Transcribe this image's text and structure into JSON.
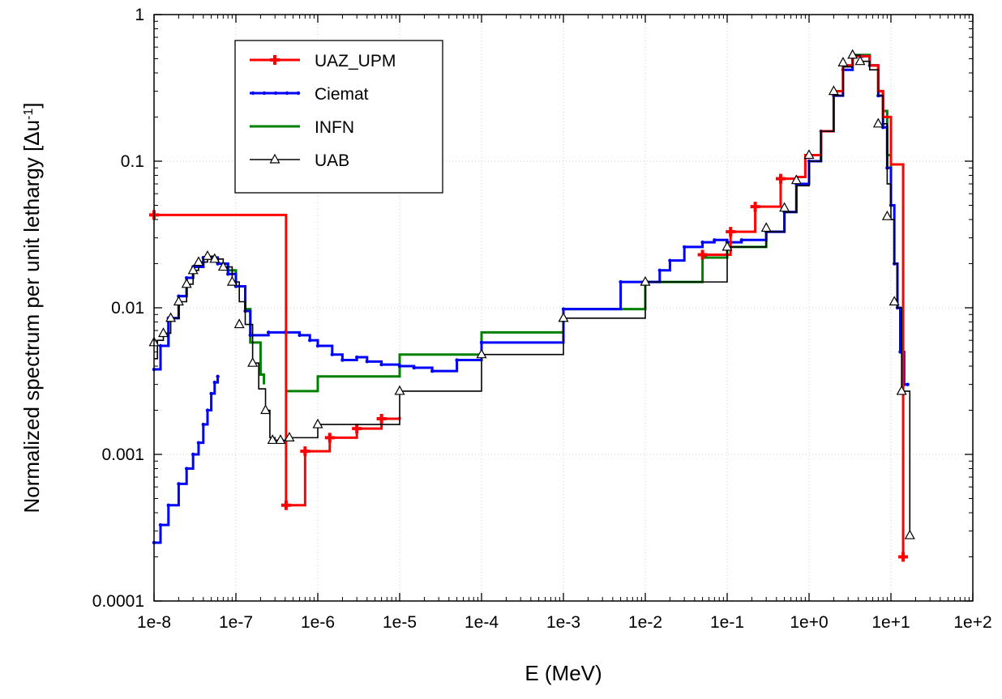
{
  "chart_data": {
    "type": "line",
    "xlabel": "E (MeV)",
    "ylabel_main": "Normalized spectrum per unit lethargy [Δu",
    "ylabel_sup": "-1",
    "ylabel_close": "]",
    "xscale": "log",
    "yscale": "log",
    "xlim": [
      1e-08,
      100
    ],
    "ylim": [
      0.0001,
      1
    ],
    "x_ticks": [
      {
        "value": 1e-08,
        "label": "1e-8"
      },
      {
        "value": 1e-07,
        "label": "1e-7"
      },
      {
        "value": 1e-06,
        "label": "1e-6"
      },
      {
        "value": 1e-05,
        "label": "1e-5"
      },
      {
        "value": 0.0001,
        "label": "1e-4"
      },
      {
        "value": 0.001,
        "label": "1e-3"
      },
      {
        "value": 0.01,
        "label": "1e-2"
      },
      {
        "value": 0.1,
        "label": "1e-1"
      },
      {
        "value": 1,
        "label": "1e+0"
      },
      {
        "value": 10,
        "label": "1e+1"
      },
      {
        "value": 100,
        "label": "1e+2"
      }
    ],
    "y_ticks": [
      {
        "value": 0.0001,
        "label": "0.0001"
      },
      {
        "value": 0.001,
        "label": "0.001"
      },
      {
        "value": 0.01,
        "label": "0.01"
      },
      {
        "value": 0.1,
        "label": "0.1"
      },
      {
        "value": 1,
        "label": "1"
      }
    ],
    "grid": true,
    "legend": "top-left",
    "series": [
      {
        "name": "UAZ_UPM",
        "color": "#ff0000",
        "marker": "cross",
        "step": true,
        "points": [
          [
            1e-08,
            0.043
          ],
          [
            4.1e-07,
            0.043
          ],
          [
            4.1e-07,
            0.0027
          ],
          [
            4.1e-07,
            0.00045
          ],
          [
            7e-07,
            0.00045
          ],
          [
            7e-07,
            0.00105
          ],
          [
            1.4e-06,
            0.00105
          ],
          [
            1.4e-06,
            0.0013
          ],
          [
            3e-06,
            0.0013
          ],
          [
            3e-06,
            0.0015
          ],
          [
            6e-06,
            0.0015
          ],
          [
            6e-06,
            0.00175
          ],
          [
            1e-05,
            0.0018
          ]
        ],
        "points2": [
          [
            0.05,
            0.023
          ],
          [
            0.11,
            0.024
          ],
          [
            0.11,
            0.033
          ],
          [
            0.22,
            0.033
          ],
          [
            0.22,
            0.049
          ],
          [
            0.45,
            0.049
          ],
          [
            0.45,
            0.076
          ],
          [
            0.7,
            0.078
          ],
          [
            0.9,
            0.11
          ],
          [
            1.4,
            0.16
          ],
          [
            2,
            0.3
          ],
          [
            2.6,
            0.45
          ],
          [
            3.4,
            0.52
          ],
          [
            4.5,
            0.52
          ],
          [
            5.5,
            0.45
          ],
          [
            7,
            0.3
          ],
          [
            8,
            0.2
          ],
          [
            10,
            0.095
          ],
          [
            14.1,
            0.095
          ],
          [
            14.1,
            0.0027
          ],
          [
            14.1,
            0.0002
          ]
        ],
        "markers": [
          [
            1e-08,
            0.043
          ],
          [
            4.1e-07,
            0.00045
          ],
          [
            7e-07,
            0.00105
          ],
          [
            1.4e-06,
            0.0013
          ],
          [
            3e-06,
            0.0015
          ],
          [
            6e-06,
            0.00175
          ],
          [
            0.05,
            0.023
          ],
          [
            0.11,
            0.033
          ],
          [
            0.22,
            0.049
          ],
          [
            0.45,
            0.076
          ],
          [
            14.1,
            0.0002
          ]
        ]
      },
      {
        "name": "Ciemat",
        "color": "#0000ff",
        "marker": "dot",
        "step": true,
        "points": [
          [
            1e-08,
            0.00025
          ],
          [
            1.2e-08,
            0.00033
          ],
          [
            1.5e-08,
            0.00045
          ],
          [
            2e-08,
            0.00063
          ],
          [
            2.5e-08,
            0.0008
          ],
          [
            3e-08,
            0.001
          ],
          [
            3.5e-08,
            0.0012
          ],
          [
            4e-08,
            0.0016
          ],
          [
            4.5e-08,
            0.002
          ],
          [
            5e-08,
            0.0026
          ],
          [
            5.5e-08,
            0.0031
          ],
          [
            6e-08,
            0.0034
          ]
        ],
        "points2": [
          [
            1e-08,
            0.0038
          ],
          [
            1.2e-08,
            0.0055
          ],
          [
            1.5e-08,
            0.0085
          ],
          [
            2e-08,
            0.012
          ],
          [
            2.5e-08,
            0.016
          ],
          [
            3e-08,
            0.019
          ],
          [
            4e-08,
            0.022
          ],
          [
            5e-08,
            0.022
          ],
          [
            6e-08,
            0.02
          ],
          [
            8e-08,
            0.017
          ],
          [
            1e-07,
            0.014
          ],
          [
            1.3e-07,
            0.0095
          ],
          [
            1.5e-07,
            0.0065
          ],
          [
            2.5e-07,
            0.0068
          ],
          [
            4e-07,
            0.0068
          ],
          [
            6e-07,
            0.0065
          ],
          [
            8e-07,
            0.006
          ],
          [
            1e-06,
            0.0055
          ],
          [
            1.5e-06,
            0.0048
          ],
          [
            2e-06,
            0.0044
          ],
          [
            3e-06,
            0.0046
          ],
          [
            4e-06,
            0.0043
          ],
          [
            6e-06,
            0.0041
          ],
          [
            1e-05,
            0.004
          ],
          [
            1.5e-05,
            0.0039
          ],
          [
            2.5e-05,
            0.0037
          ],
          [
            5e-05,
            0.0044
          ],
          [
            0.0001,
            0.0058
          ],
          [
            0.001,
            0.0098
          ],
          [
            0.005,
            0.015
          ],
          [
            0.015,
            0.018
          ],
          [
            0.02,
            0.021
          ],
          [
            0.03,
            0.026
          ],
          [
            0.05,
            0.028
          ],
          [
            0.07,
            0.029
          ],
          [
            0.1,
            0.028
          ],
          [
            0.15,
            0.029
          ],
          [
            0.3,
            0.033
          ],
          [
            0.5,
            0.045
          ],
          [
            0.7,
            0.07
          ],
          [
            1,
            0.1
          ],
          [
            1.4,
            0.16
          ],
          [
            2,
            0.28
          ],
          [
            2.6,
            0.42
          ],
          [
            3.4,
            0.52
          ],
          [
            4.5,
            0.52
          ],
          [
            5.5,
            0.45
          ],
          [
            7,
            0.28
          ],
          [
            8,
            0.17
          ],
          [
            9,
            0.09
          ],
          [
            10,
            0.05
          ],
          [
            11,
            0.02
          ],
          [
            12,
            0.01
          ],
          [
            13,
            0.005
          ],
          [
            14.5,
            0.003
          ],
          [
            16,
            0.003
          ]
        ]
      },
      {
        "name": "INFN",
        "color": "#008000",
        "marker": "none",
        "step": true,
        "points": [
          [
            1e-08,
            0.0038
          ],
          [
            1.2e-08,
            0.0055
          ],
          [
            1.5e-08,
            0.0085
          ],
          [
            2e-08,
            0.012
          ],
          [
            2.5e-08,
            0.016
          ],
          [
            3e-08,
            0.019
          ],
          [
            4e-08,
            0.022
          ],
          [
            5e-08,
            0.022
          ],
          [
            6e-08,
            0.02
          ],
          [
            8e-08,
            0.018
          ],
          [
            1e-07,
            0.014
          ],
          [
            1.3e-07,
            0.0098
          ],
          [
            1.5e-07,
            0.0058
          ],
          [
            2e-07,
            0.0035
          ],
          [
            2.2e-07,
            0.003
          ]
        ],
        "points2": [
          [
            4.1e-07,
            0.0027
          ],
          [
            1e-06,
            0.0034
          ],
          [
            1e-05,
            0.0048
          ],
          [
            0.0001,
            0.0068
          ],
          [
            0.001,
            0.0098
          ],
          [
            0.01,
            0.015
          ],
          [
            0.05,
            0.022
          ],
          [
            0.1,
            0.026
          ],
          [
            0.3,
            0.033
          ],
          [
            0.5,
            0.045
          ],
          [
            0.7,
            0.07
          ],
          [
            1,
            0.1
          ],
          [
            1.4,
            0.16
          ],
          [
            2,
            0.3
          ],
          [
            2.6,
            0.45
          ],
          [
            3.4,
            0.53
          ],
          [
            4.5,
            0.53
          ],
          [
            5.5,
            0.45
          ],
          [
            7,
            0.3
          ],
          [
            8,
            0.22
          ],
          [
            9,
            0.11
          ],
          [
            10,
            0.07
          ],
          [
            10.2,
            0.07
          ]
        ]
      },
      {
        "name": "UAB",
        "color": "#000000",
        "marker": "triangle",
        "step": true,
        "points": [
          [
            1e-08,
            0.0045
          ],
          [
            1.1e-08,
            0.006
          ],
          [
            1.3e-08,
            0.0067
          ],
          [
            1.6e-08,
            0.0085
          ],
          [
            2e-08,
            0.011
          ],
          [
            2.5e-08,
            0.0145
          ],
          [
            3e-08,
            0.018
          ],
          [
            3.5e-08,
            0.0205
          ],
          [
            4.5e-08,
            0.0225
          ],
          [
            5.5e-08,
            0.0215
          ],
          [
            7e-08,
            0.019
          ],
          [
            9e-08,
            0.015
          ],
          [
            1.1e-07,
            0.011
          ],
          [
            1.3e-07,
            0.0077
          ],
          [
            1.6e-07,
            0.0042
          ],
          [
            1.9e-07,
            0.0028
          ],
          [
            2.3e-07,
            0.002
          ],
          [
            2.6e-07,
            0.0013
          ],
          [
            3e-07,
            0.00125
          ],
          [
            3.5e-07,
            0.00125
          ],
          [
            4.5e-07,
            0.0013
          ],
          [
            1e-06,
            0.0016
          ],
          [
            1e-05,
            0.0027
          ],
          [
            0.0001,
            0.0048
          ],
          [
            0.001,
            0.0085
          ],
          [
            0.01,
            0.015
          ],
          [
            0.1,
            0.026
          ],
          [
            0.3,
            0.033
          ],
          [
            0.5,
            0.045
          ],
          [
            0.7,
            0.068
          ],
          [
            1,
            0.1
          ],
          [
            1.4,
            0.16
          ],
          [
            2,
            0.28
          ],
          [
            2.6,
            0.44
          ],
          [
            3.4,
            0.53
          ],
          [
            4.2,
            0.48
          ],
          [
            5.5,
            0.42
          ],
          [
            7,
            0.28
          ],
          [
            8,
            0.18
          ],
          [
            9,
            0.07
          ],
          [
            10,
            0.04
          ],
          [
            11,
            0.02
          ],
          [
            12,
            0.01
          ],
          [
            13.5,
            0.0027
          ],
          [
            16,
            0.0027
          ],
          [
            17,
            0.00028
          ]
        ],
        "markers": [
          [
            1e-08,
            0.0058
          ],
          [
            1.3e-08,
            0.0067
          ],
          [
            1.6e-08,
            0.0085
          ],
          [
            2e-08,
            0.011
          ],
          [
            2.5e-08,
            0.0145
          ],
          [
            3e-08,
            0.018
          ],
          [
            3.5e-08,
            0.0205
          ],
          [
            4.5e-08,
            0.0225
          ],
          [
            5.5e-08,
            0.0215
          ],
          [
            7e-08,
            0.019
          ],
          [
            9e-08,
            0.015
          ],
          [
            1.1e-07,
            0.0077
          ],
          [
            1.6e-07,
            0.0042
          ],
          [
            2.3e-07,
            0.002
          ],
          [
            2.8e-07,
            0.00125
          ],
          [
            3.5e-07,
            0.00125
          ],
          [
            4.5e-07,
            0.0013
          ],
          [
            1e-06,
            0.0016
          ],
          [
            1e-05,
            0.0027
          ],
          [
            0.0001,
            0.0048
          ],
          [
            0.001,
            0.0085
          ],
          [
            0.01,
            0.015
          ],
          [
            0.1,
            0.026
          ],
          [
            0.3,
            0.035
          ],
          [
            0.5,
            0.048
          ],
          [
            0.7,
            0.074
          ],
          [
            1,
            0.11
          ],
          [
            2,
            0.3
          ],
          [
            2.6,
            0.47
          ],
          [
            3.4,
            0.53
          ],
          [
            4.2,
            0.48
          ],
          [
            7,
            0.18
          ],
          [
            9,
            0.042
          ],
          [
            11,
            0.011
          ],
          [
            13.5,
            0.0027
          ],
          [
            17,
            0.00028
          ]
        ]
      }
    ]
  }
}
